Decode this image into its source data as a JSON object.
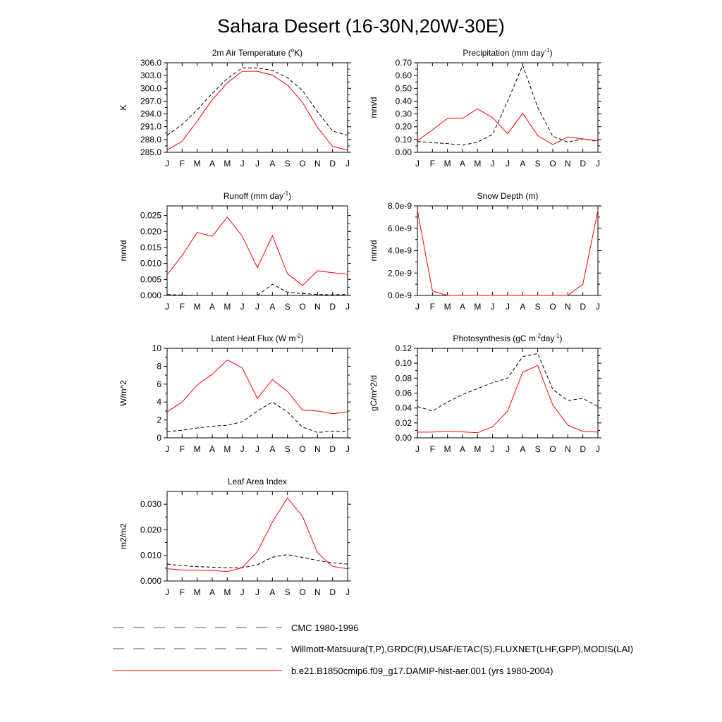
{
  "title": "Sahara Desert (16-30N,20W-30E)",
  "months": [
    "J",
    "F",
    "M",
    "A",
    "M",
    "J",
    "J",
    "A",
    "S",
    "O",
    "N",
    "D",
    "J"
  ],
  "legend": [
    {
      "label": "CMC 1980-1996",
      "style": "dash",
      "color": "#000000"
    },
    {
      "label": "Willmott-Matsuura(T,P),GRDC(R),USAF/ETAC(S),FLUXNET(LHF,GPP),MODIS(LAI)",
      "style": "dash",
      "color": "#000000"
    },
    {
      "label": "b.e21.B1850cmip6.f09_g17.DAMIP-hist-aer.001 (yrs 1980-2004)",
      "style": "solid",
      "color": "#ff0000"
    }
  ],
  "chart_data": [
    {
      "type": "line",
      "title": "2m Air Temperature (",
      "title_sup": "o",
      "title_after": "K)",
      "ylabel": "K",
      "ylim": [
        285,
        306
      ],
      "yticks": [
        285,
        288,
        291,
        294,
        297,
        300,
        303,
        306
      ],
      "ytick_labels": [
        "285.0",
        "288.0",
        "291.0",
        "294.0",
        "297.0",
        "300.0",
        "303.0",
        "306.0"
      ],
      "x": [
        "J",
        "F",
        "M",
        "A",
        "M",
        "J",
        "J",
        "A",
        "S",
        "O",
        "N",
        "D",
        "J"
      ],
      "series": [
        {
          "style": "dash",
          "color": "#000000",
          "values": [
            289.0,
            291.5,
            295.0,
            298.8,
            302.3,
            304.8,
            304.8,
            304.2,
            302.5,
            299.5,
            294.5,
            290.0,
            289.0
          ]
        },
        {
          "style": "solid",
          "color": "#ff0000",
          "values": [
            285.5,
            287.6,
            292.3,
            297.3,
            301.3,
            304.0,
            304.0,
            303.1,
            300.8,
            296.7,
            290.8,
            286.4,
            285.5
          ]
        }
      ]
    },
    {
      "type": "line",
      "title": "Precipitation (mm day",
      "title_sup": "-1",
      "title_after": ")",
      "ylabel": "mm/d",
      "ylim": [
        0,
        0.7
      ],
      "yticks": [
        0,
        0.1,
        0.2,
        0.3,
        0.4,
        0.5,
        0.6,
        0.7
      ],
      "ytick_labels": [
        "0.00",
        "0.10",
        "0.20",
        "0.30",
        "0.40",
        "0.50",
        "0.60",
        "0.70"
      ],
      "x": [
        "J",
        "F",
        "M",
        "A",
        "M",
        "J",
        "J",
        "A",
        "S",
        "O",
        "N",
        "D",
        "J"
      ],
      "series": [
        {
          "style": "dash",
          "color": "#000000",
          "values": [
            0.085,
            0.075,
            0.068,
            0.055,
            0.08,
            0.14,
            0.4,
            0.68,
            0.35,
            0.125,
            0.08,
            0.105,
            0.085
          ]
        },
        {
          "style": "solid",
          "color": "#ff0000",
          "values": [
            0.09,
            0.175,
            0.265,
            0.265,
            0.34,
            0.27,
            0.145,
            0.305,
            0.13,
            0.06,
            0.12,
            0.105,
            0.09
          ]
        }
      ]
    },
    {
      "type": "line",
      "title": "Runoff (mm day",
      "title_sup": "-1",
      "title_after": ")",
      "ylabel": "mm/d",
      "ylim": [
        0,
        0.028
      ],
      "yticks": [
        0,
        0.005,
        0.01,
        0.015,
        0.02,
        0.025
      ],
      "ytick_labels": [
        "0.000",
        "0.005",
        "0.010",
        "0.015",
        "0.020",
        "0.025"
      ],
      "x": [
        "J",
        "F",
        "M",
        "A",
        "M",
        "J",
        "J",
        "A",
        "S",
        "O",
        "N",
        "D",
        "J"
      ],
      "series": [
        {
          "style": "dash",
          "color": "#000000",
          "values": [
            0.0003,
            0.0001,
            0.0,
            0.0,
            0.0,
            0.0,
            0.0,
            0.0035,
            0.001,
            0.0006,
            0.0003,
            0.0002,
            0.0003
          ]
        },
        {
          "style": "solid",
          "color": "#ff0000",
          "values": [
            0.0065,
            0.0125,
            0.0197,
            0.0185,
            0.0245,
            0.0185,
            0.0087,
            0.0187,
            0.0068,
            0.0031,
            0.0077,
            0.0071,
            0.0066
          ]
        }
      ]
    },
    {
      "type": "line",
      "title": "Snow Depth (m)",
      "title_sup": "",
      "title_after": "",
      "ylabel": "mm/d",
      "ylim": [
        0,
        8e-09
      ],
      "yticks": [
        0,
        2e-09,
        4e-09,
        6e-09,
        8e-09
      ],
      "ytick_labels": [
        "0.0e-9",
        "2.0e-9",
        "4.0e-9",
        "6.0e-9",
        "8.0e-9"
      ],
      "x": [
        "J",
        "F",
        "M",
        "A",
        "M",
        "J",
        "J",
        "A",
        "S",
        "O",
        "N",
        "D",
        "J"
      ],
      "series": [
        {
          "style": "dash",
          "color": "#000000",
          "values": [
            0,
            0,
            0,
            0,
            0,
            0,
            0,
            0,
            0,
            0,
            0,
            0,
            0
          ]
        },
        {
          "style": "solid",
          "color": "#ff0000",
          "values": [
            7.6e-09,
            4e-10,
            0,
            0,
            0,
            0,
            0,
            0,
            0,
            0,
            0,
            1e-09,
            7.6e-09
          ]
        }
      ]
    },
    {
      "type": "line",
      "title": "Latent Heat Flux (W m",
      "title_sup": "-2",
      "title_after": ")",
      "ylabel": "W/m^2",
      "ylim": [
        0,
        10
      ],
      "yticks": [
        0,
        2,
        4,
        6,
        8,
        10
      ],
      "ytick_labels": [
        "0",
        "2",
        "4",
        "6",
        "8",
        "10"
      ],
      "x": [
        "J",
        "F",
        "M",
        "A",
        "M",
        "J",
        "J",
        "A",
        "S",
        "O",
        "N",
        "D",
        "J"
      ],
      "series": [
        {
          "style": "dash",
          "color": "#000000",
          "values": [
            0.7,
            0.85,
            1.1,
            1.3,
            1.4,
            1.8,
            3.0,
            4.0,
            2.9,
            1.2,
            0.6,
            0.75,
            0.7
          ]
        },
        {
          "style": "solid",
          "color": "#ff0000",
          "values": [
            2.9,
            4.0,
            5.9,
            7.1,
            8.7,
            7.8,
            4.4,
            6.5,
            5.2,
            3.1,
            3.0,
            2.7,
            2.9
          ]
        }
      ]
    },
    {
      "type": "line",
      "title": "Photosynthesis (gC m",
      "title_sup": "-2",
      "title_after": "day",
      "title_sup2": "-1",
      "title_end": ")",
      "ylabel": "gC/m^2/d",
      "ylim": [
        0,
        0.12
      ],
      "yticks": [
        0,
        0.02,
        0.04,
        0.06,
        0.08,
        0.1,
        0.12
      ],
      "ytick_labels": [
        "0.00",
        "0.02",
        "0.04",
        "0.06",
        "0.08",
        "0.10",
        "0.12"
      ],
      "x": [
        "J",
        "F",
        "M",
        "A",
        "M",
        "J",
        "J",
        "A",
        "S",
        "O",
        "N",
        "D",
        "J"
      ],
      "series": [
        {
          "style": "dash",
          "color": "#000000",
          "values": [
            0.042,
            0.036,
            0.048,
            0.058,
            0.066,
            0.074,
            0.08,
            0.109,
            0.113,
            0.065,
            0.05,
            0.053,
            0.042
          ]
        },
        {
          "style": "solid",
          "color": "#ff0000",
          "values": [
            0.0075,
            0.0078,
            0.0085,
            0.008,
            0.0068,
            0.015,
            0.036,
            0.088,
            0.097,
            0.044,
            0.017,
            0.0085,
            0.0078
          ]
        }
      ]
    },
    {
      "type": "line",
      "title": "Leaf Area Index",
      "title_sup": "",
      "title_after": "",
      "ylabel": "m2/m2",
      "ylim": [
        0,
        0.035
      ],
      "yticks": [
        0,
        0.01,
        0.02,
        0.03
      ],
      "ytick_labels": [
        "0.000",
        "0.010",
        "0.020",
        "0.030"
      ],
      "x": [
        "J",
        "F",
        "M",
        "A",
        "M",
        "J",
        "J",
        "A",
        "S",
        "O",
        "N",
        "D",
        "J"
      ],
      "series": [
        {
          "style": "dash",
          "color": "#000000",
          "values": [
            0.0066,
            0.006,
            0.0056,
            0.0054,
            0.0052,
            0.0052,
            0.0063,
            0.0093,
            0.0103,
            0.0092,
            0.008,
            0.0071,
            0.0066
          ]
        },
        {
          "style": "solid",
          "color": "#ff0000",
          "values": [
            0.0048,
            0.0043,
            0.0042,
            0.0041,
            0.0037,
            0.0052,
            0.0115,
            0.023,
            0.0325,
            0.0253,
            0.011,
            0.0057,
            0.0048
          ]
        }
      ]
    }
  ]
}
